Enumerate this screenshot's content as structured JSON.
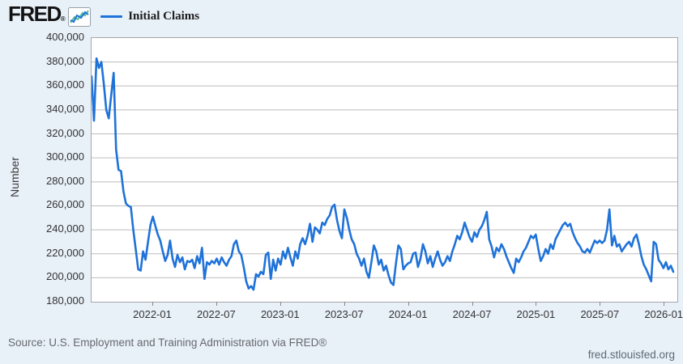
{
  "header": {
    "logo_text": "FRED",
    "registered_mark": "®",
    "legend": {
      "label": "Initial Claims"
    }
  },
  "chart": {
    "y_axis_title": "Number",
    "y_tick_labels": [
      "400,000",
      "380,000",
      "360,000",
      "340,000",
      "320,000",
      "300,000",
      "280,000",
      "260,000",
      "240,000",
      "220,000",
      "200,000",
      "180,000"
    ],
    "x_tick_labels": [
      "2022-01",
      "2022-07",
      "2023-01",
      "2023-07",
      "2024-01",
      "2024-07",
      "2025-01",
      "2025-07",
      "2026-01"
    ]
  },
  "chart_data": {
    "type": "line",
    "title": "Initial Claims",
    "ylabel": "Number",
    "xlabel": "",
    "ylim": [
      180000,
      400000
    ],
    "x_range": [
      "2021-07",
      "2026-01"
    ],
    "frequency": "weekly",
    "grid": "horizontal",
    "legend_position": "top-left",
    "line_color": "#1f72d8",
    "series": [
      {
        "name": "Initial Claims",
        "values": [
          368000,
          331000,
          383000,
          375000,
          380000,
          362000,
          340000,
          333000,
          352000,
          371000,
          307000,
          290000,
          289000,
          272000,
          262000,
          260000,
          259000,
          240000,
          224000,
          207000,
          206000,
          222000,
          215000,
          230000,
          244000,
          251000,
          243000,
          236000,
          231000,
          222000,
          214000,
          219000,
          231000,
          216000,
          209000,
          219000,
          213000,
          217000,
          207000,
          214000,
          213000,
          215000,
          208000,
          218000,
          212000,
          225000,
          199000,
          213000,
          211000,
          214000,
          212000,
          216000,
          211000,
          217000,
          213000,
          210000,
          215000,
          218000,
          228000,
          231000,
          222000,
          219000,
          209000,
          197000,
          191000,
          193000,
          190000,
          203000,
          201000,
          205000,
          203000,
          219000,
          221000,
          199000,
          215000,
          206000,
          216000,
          211000,
          222000,
          216000,
          225000,
          217000,
          210000,
          222000,
          216000,
          228000,
          233000,
          228000,
          235000,
          245000,
          230000,
          242000,
          240000,
          237000,
          246000,
          244000,
          249000,
          252000,
          259000,
          261000,
          248000,
          239000,
          233000,
          257000,
          250000,
          240000,
          232000,
          228000,
          220000,
          216000,
          210000,
          216000,
          205000,
          200000,
          213000,
          227000,
          222000,
          211000,
          215000,
          206000,
          210000,
          202000,
          196000,
          194000,
          212000,
          227000,
          224000,
          207000,
          210000,
          212000,
          213000,
          220000,
          221000,
          209000,
          216000,
          228000,
          222000,
          212000,
          218000,
          209000,
          216000,
          222000,
          215000,
          210000,
          213000,
          218000,
          214000,
          222000,
          228000,
          235000,
          232000,
          238000,
          246000,
          240000,
          234000,
          230000,
          238000,
          234000,
          240000,
          243000,
          248000,
          255000,
          232000,
          226000,
          217000,
          225000,
          222000,
          228000,
          224000,
          218000,
          213000,
          208000,
          204000,
          216000,
          213000,
          217000,
          222000,
          225000,
          230000,
          235000,
          233000,
          236000,
          224000,
          214000,
          218000,
          224000,
          220000,
          228000,
          224000,
          232000,
          236000,
          240000,
          244000,
          246000,
          243000,
          245000,
          238000,
          233000,
          229000,
          226000,
          222000,
          221000,
          224000,
          221000,
          226000,
          231000,
          229000,
          231000,
          229000,
          231000,
          240000,
          257000,
          227000,
          235000,
          226000,
          228000,
          222000,
          225000,
          228000,
          230000,
          226000,
          233000,
          236000,
          228000,
          218000,
          211000,
          207000,
          202000,
          197000,
          230000,
          228000,
          215000,
          212000,
          208000,
          213000,
          207000,
          210000,
          205000
        ]
      }
    ]
  },
  "footer": {
    "source": "Source: U.S. Employment and Training Administration via FRED®",
    "site": "fred.stlouisfed.org"
  },
  "colors": {
    "background": "#e8f0f8",
    "plot_background": "#ffffff",
    "plot_border": "#a6a6a6",
    "gridline": "#bdbdbd",
    "line": "#1f72d8",
    "axis_text": "#333333",
    "muted_text": "#666a6e",
    "logo_icon_green": "#5bbf9b"
  }
}
